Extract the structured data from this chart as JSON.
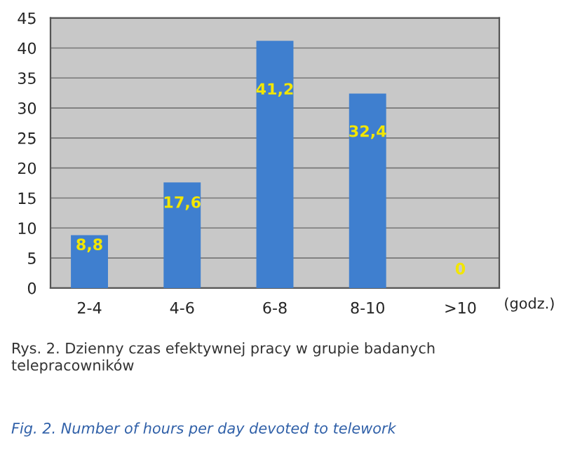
{
  "chart_data": {
    "type": "bar",
    "categories": [
      "2-4",
      "4-6",
      "6-8",
      "8-10",
      ">10"
    ],
    "values": [
      8.8,
      17.6,
      41.2,
      32.4,
      0
    ],
    "value_labels": [
      "8,8",
      "17,6",
      "41,2",
      "32,4",
      "0"
    ],
    "color": "#3f7fcf",
    "xlabel": "(godz.)",
    "ylim": [
      0,
      45
    ],
    "yticks": [
      0,
      5,
      10,
      15,
      20,
      25,
      30,
      35,
      40,
      45
    ],
    "grid": "y",
    "legend": false,
    "annotations": [
      "Rys. 2. Dzienny czas efektywnej pracy w grupie badanych telepracowników",
      "Fig. 2. Number of hours per day devoted to telework"
    ]
  }
}
